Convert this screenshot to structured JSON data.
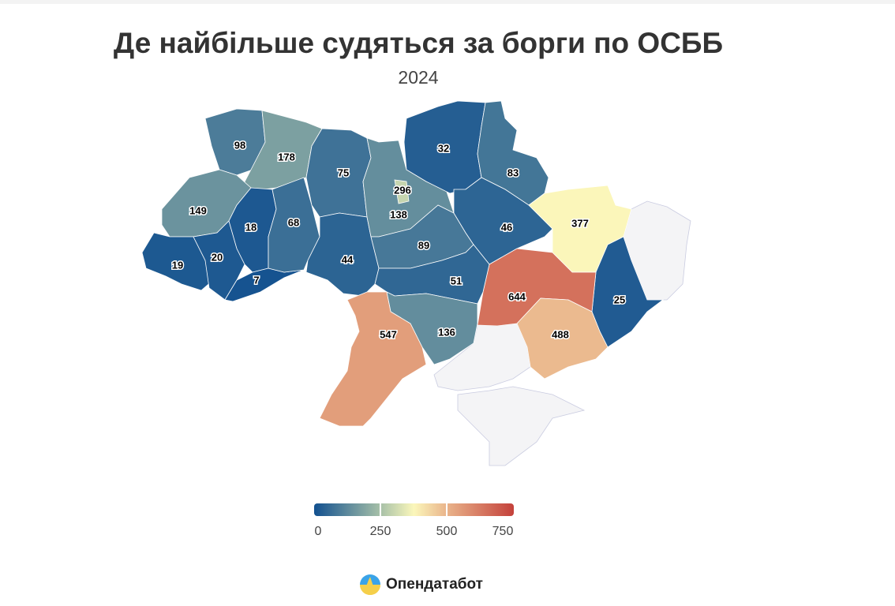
{
  "title": "Де найбільше судяться за борги по ОСББ",
  "subtitle": "2024",
  "brand": "Опендатабот",
  "chart_data": {
    "type": "choropleth",
    "title": "Де найбільше судяться за борги по ОСББ",
    "subtitle": "2024",
    "color_scale": {
      "min": 0,
      "max": 750,
      "ticks": [
        "0",
        "250",
        "500",
        "750"
      ],
      "stops": [
        [
          0,
          "#12508f"
        ],
        [
          250,
          "#a7c1a8"
        ],
        [
          375,
          "#fbf7bb"
        ],
        [
          500,
          "#e9b38a"
        ],
        [
          750,
          "#c4413b"
        ]
      ],
      "no_data_color": "#f4f4f6"
    },
    "regions": {
      "volyn": 98,
      "rivne": 178,
      "lviv": 149,
      "zakarpattia": 19,
      "ivano-frankivsk": 20,
      "ternopil": 18,
      "chernivtsi": 7,
      "khmelnytskyi": 68,
      "zhytomyr": 75,
      "vinnytsia": 44,
      "kyiv-oblast": 138,
      "kyiv-city": 296,
      "chernihiv": 32,
      "sumy": 83,
      "cherkasy": 89,
      "poltava": 46,
      "kharkiv": 377,
      "luhansk": null,
      "donetsk": 25,
      "dnipropetrovsk": 644,
      "kirovohrad": 51,
      "zaporizhzhia": 488,
      "mykolaiv": 136,
      "odesa": 547,
      "kherson": null,
      "crimea": null
    }
  }
}
